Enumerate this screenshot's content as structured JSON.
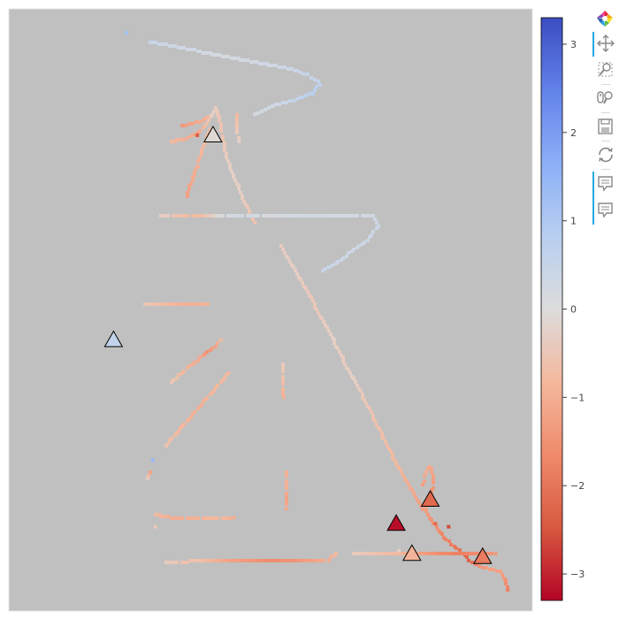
{
  "chart_data": {
    "type": "scatter",
    "title": "",
    "xlabel": "",
    "ylabel": "",
    "xlim": [
      0,
      100
    ],
    "ylim": [
      0,
      100
    ],
    "plot_background": "#c0c0c0",
    "color_map": "coolwarm",
    "color_range": [
      -3.3,
      3.3
    ],
    "colorbar": {
      "ticks": [
        3,
        2,
        1,
        0,
        -1,
        -2,
        -3
      ],
      "tick_labels": [
        "3",
        "2",
        "1",
        "0",
        "−1",
        "−2",
        "−3"
      ],
      "placement": "right"
    },
    "tracks": [
      {
        "points": [
          [
            27,
            94.5,
            0.5
          ],
          [
            30,
            94,
            0.4
          ],
          [
            33,
            93.5,
            0.3
          ],
          [
            36,
            93,
            0.3
          ],
          [
            39,
            92.5,
            0.2
          ],
          [
            42,
            92,
            0.2
          ],
          [
            45,
            91.5,
            0.2
          ],
          [
            48,
            91,
            0.3
          ],
          [
            51,
            90.5,
            0.3
          ],
          [
            54,
            90,
            0.4
          ],
          [
            57,
            89,
            0.5
          ],
          [
            59,
            88,
            0.6
          ],
          [
            59.3,
            87.5,
            0.7
          ],
          [
            58,
            86,
            0.8
          ],
          [
            55,
            85,
            0.6
          ],
          [
            51,
            84,
            0.3
          ],
          [
            47,
            82.5,
            0.2
          ]
        ]
      },
      {
        "points": [
          [
            31,
            78,
            -0.8
          ],
          [
            34,
            78.5,
            -1.0
          ],
          [
            36,
            79.5,
            -1.2
          ],
          [
            38,
            81,
            -0.6
          ],
          [
            39,
            82.5,
            -0.3
          ],
          [
            39.6,
            83.5,
            -0.4
          ],
          [
            40.2,
            82,
            -0.5
          ],
          [
            40.8,
            79,
            -0.6
          ],
          [
            41.5,
            76,
            -0.4
          ],
          [
            42.5,
            73,
            -0.3
          ],
          [
            44,
            70,
            -0.3
          ],
          [
            45.5,
            67,
            -0.5
          ],
          [
            47,
            64.5,
            -0.6
          ]
        ]
      },
      {
        "points": [
          [
            33,
            80.5,
            -1.4
          ],
          [
            35,
            81,
            -1.2
          ],
          [
            37,
            81.5,
            -1.0
          ],
          [
            38,
            82,
            -0.9
          ]
        ]
      },
      {
        "points": [
          [
            34,
            69,
            -1.3
          ],
          [
            35,
            71.5,
            -1.1
          ],
          [
            36,
            74,
            -1.0
          ],
          [
            37.2,
            77,
            -0.8
          ],
          [
            38.5,
            80,
            -0.7
          ]
        ]
      },
      {
        "points": [
          [
            43.5,
            82.5,
            -0.8
          ],
          [
            43.5,
            80,
            -0.5
          ],
          [
            44,
            78,
            -0.3
          ]
        ]
      },
      {
        "points": [
          [
            29,
            65.5,
            -0.3
          ],
          [
            32,
            65.5,
            -0.6
          ],
          [
            35,
            65.5,
            -0.8
          ],
          [
            37,
            65.5,
            -0.7
          ],
          [
            41,
            65.5,
            0.1
          ],
          [
            44,
            65.5,
            0.3
          ],
          [
            47,
            65.5,
            0.2
          ],
          [
            50,
            65.5,
            0.1
          ],
          [
            54,
            65.5,
            0.2
          ],
          [
            58,
            65.5,
            0.3
          ],
          [
            62,
            65.5,
            0.2
          ],
          [
            66,
            65.5,
            0.2
          ],
          [
            69.5,
            65.5,
            0.3
          ],
          [
            70.5,
            64,
            0.4
          ],
          [
            69,
            62,
            0.4
          ],
          [
            66,
            60,
            0.3
          ],
          [
            63,
            58,
            0.4
          ],
          [
            60,
            56.5,
            0.5
          ]
        ]
      },
      {
        "points": [
          [
            52,
            60.5,
            -0.4
          ],
          [
            54,
            57.5,
            -0.3
          ],
          [
            56,
            54.5,
            -0.4
          ],
          [
            58,
            51.5,
            -0.5
          ],
          [
            60,
            48,
            -0.4
          ],
          [
            62,
            45,
            -0.3
          ],
          [
            64,
            41.5,
            -0.4
          ],
          [
            66,
            38.5,
            -0.3
          ],
          [
            68,
            35,
            -0.5
          ],
          [
            70,
            31.5,
            -0.6
          ],
          [
            72,
            28,
            -0.7
          ],
          [
            74,
            24.5,
            -0.8
          ],
          [
            76,
            21.5,
            -1.0
          ],
          [
            78,
            18.5,
            -1.2
          ],
          [
            80,
            16,
            -1.4
          ],
          [
            82,
            13.5,
            -1.6
          ],
          [
            84,
            11.5,
            -1.8
          ],
          [
            86,
            10,
            -2.0
          ],
          [
            88,
            8.5,
            -2.3
          ],
          [
            90,
            7.5,
            -1.5
          ],
          [
            92,
            7,
            -1.2
          ],
          [
            94,
            6.5,
            -1.2
          ],
          [
            94.8,
            5,
            -1.5
          ],
          [
            95.3,
            3.5,
            -1.8
          ]
        ]
      },
      {
        "points": [
          [
            79.2,
            21,
            -1.3
          ],
          [
            79.6,
            23,
            -1.0
          ],
          [
            80.4,
            24,
            -1.1
          ],
          [
            81,
            22.5,
            -1.2
          ],
          [
            81,
            20.5,
            -1.4
          ],
          [
            80.4,
            18.5,
            -1.6
          ],
          [
            79.6,
            17,
            -1.2
          ]
        ]
      },
      {
        "points": [
          [
            26,
            51,
            -0.5
          ],
          [
            30,
            51,
            -0.8
          ],
          [
            34,
            51,
            -1.0
          ],
          [
            38,
            51,
            -0.9
          ]
        ]
      },
      {
        "points": [
          [
            31,
            38,
            -0.5
          ],
          [
            33,
            39.5,
            -0.8
          ],
          [
            35,
            41,
            -1.0
          ],
          [
            36.5,
            42,
            -1.1
          ],
          [
            38,
            43,
            -1.5
          ],
          [
            39.5,
            44,
            -1.2
          ],
          [
            40.5,
            45,
            -0.8
          ]
        ]
      },
      {
        "points": [
          [
            30,
            27.5,
            -0.6
          ],
          [
            32,
            29.5,
            -0.8
          ],
          [
            34,
            31.5,
            -0.9
          ],
          [
            36,
            33.5,
            -1.0
          ],
          [
            38,
            35.5,
            -0.9
          ],
          [
            40,
            37.5,
            -0.8
          ],
          [
            42,
            39.5,
            -0.8
          ]
        ]
      },
      {
        "points": [
          [
            52.5,
            41,
            -0.4
          ],
          [
            52.5,
            39,
            -0.6
          ],
          [
            52.5,
            37,
            -0.8
          ],
          [
            52.5,
            35.5,
            -1.0
          ]
        ]
      },
      {
        "points": [
          [
            53,
            23,
            -1.0
          ],
          [
            53,
            21,
            -0.9
          ],
          [
            53,
            19,
            -1.2
          ],
          [
            53,
            17,
            -1.1
          ]
        ]
      },
      {
        "points": [
          [
            28,
            16,
            -0.8
          ],
          [
            31,
            15.5,
            -1.0
          ],
          [
            34,
            15.5,
            -1.0
          ],
          [
            37,
            15.5,
            -0.9
          ],
          [
            40,
            15.5,
            -0.8
          ],
          [
            43,
            15.5,
            -1.0
          ]
        ]
      },
      {
        "points": [
          [
            30,
            8,
            -0.4
          ],
          [
            33,
            8,
            -0.6
          ],
          [
            36,
            8.5,
            -0.6
          ],
          [
            42,
            8.5,
            -1.2
          ],
          [
            46,
            8.5,
            -1.4
          ],
          [
            50,
            8.5,
            -1.6
          ],
          [
            54,
            8.5,
            -1.5
          ],
          [
            58,
            8.5,
            -1.2
          ],
          [
            61,
            8.5,
            -1.0
          ],
          [
            62.5,
            9.5,
            -0.8
          ]
        ]
      },
      {
        "points": [
          [
            66,
            9.5,
            -0.4
          ],
          [
            70,
            9.5,
            -0.6
          ],
          [
            74,
            9.5,
            -0.8
          ],
          [
            78,
            9.5,
            -1.2
          ],
          [
            82,
            9.5,
            -1.6
          ],
          [
            86,
            9.5,
            -1.8
          ],
          [
            90,
            9.5,
            -1.6
          ],
          [
            93,
            9.5,
            -1.4
          ]
        ]
      },
      {
        "points": [
          [
            27,
            23,
            -1.2
          ],
          [
            26.5,
            22,
            -0.4
          ]
        ]
      }
    ],
    "isolated_points": [
      {
        "x": 22.5,
        "y": 96,
        "value": 1.2
      },
      {
        "x": 28,
        "y": 14,
        "value": -0.5
      },
      {
        "x": 27.5,
        "y": 25,
        "value": 1.4
      },
      {
        "x": 36,
        "y": 79,
        "value": -2.4
      },
      {
        "x": 74.5,
        "y": 10,
        "value": -0.3
      },
      {
        "x": 81.5,
        "y": 14.5,
        "value": -2.2
      },
      {
        "x": 84,
        "y": 14,
        "value": -2.6
      }
    ],
    "markers": [
      {
        "x": 39,
        "y": 79,
        "value": -0.1,
        "shape": "triangle"
      },
      {
        "x": 20,
        "y": 45,
        "value": 0.6,
        "shape": "triangle"
      },
      {
        "x": 80.5,
        "y": 18.5,
        "value": -2.2,
        "shape": "triangle"
      },
      {
        "x": 74,
        "y": 14.5,
        "value": -3.2,
        "shape": "triangle"
      },
      {
        "x": 77,
        "y": 9.5,
        "value": -0.9,
        "shape": "triangle"
      },
      {
        "x": 90.5,
        "y": 9,
        "value": -1.9,
        "shape": "triangle"
      }
    ]
  },
  "toolbar": {
    "tools": [
      {
        "name": "logo",
        "icon": "bokeh-logo-icon",
        "active": false
      },
      {
        "name": "pan",
        "icon": "pan-icon",
        "active": true
      },
      {
        "name": "box-zoom",
        "icon": "box-zoom-icon",
        "active": false
      },
      {
        "name": "wheel-zoom",
        "icon": "wheel-zoom-icon",
        "active": false
      },
      {
        "name": "save",
        "icon": "save-icon",
        "active": false
      },
      {
        "name": "reset",
        "icon": "reset-icon",
        "active": false
      },
      {
        "name": "hover-1",
        "icon": "hover-icon",
        "active": true
      },
      {
        "name": "hover-2",
        "icon": "hover-icon",
        "active": true
      }
    ],
    "accent_color": "#26aae1"
  }
}
